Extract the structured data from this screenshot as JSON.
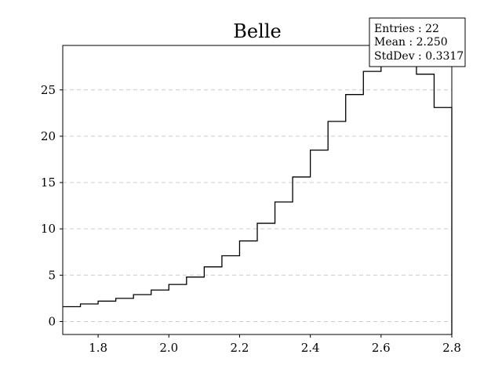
{
  "chart_data": {
    "type": "histogram",
    "title": "Belle",
    "xlabel": "",
    "ylabel": "",
    "xlim": [
      1.7,
      2.8
    ],
    "ylim": [
      -1.4,
      29.8
    ],
    "x_ticks": [
      1.8,
      2.0,
      2.2,
      2.4,
      2.6,
      2.8
    ],
    "x_tick_labels": [
      "1.8",
      "2.0",
      "2.2",
      "2.4",
      "2.6",
      "2.8"
    ],
    "y_ticks": [
      0,
      5,
      10,
      15,
      20,
      25
    ],
    "y_tick_labels": [
      "0",
      "5",
      "10",
      "15",
      "20",
      "25"
    ],
    "grid": "y-dashed",
    "bin_edges": [
      1.7,
      1.75,
      1.8,
      1.85,
      1.9,
      1.95,
      2.0,
      2.05,
      2.1,
      2.15,
      2.2,
      2.25,
      2.3,
      2.35,
      2.4,
      2.45,
      2.5,
      2.55,
      2.6,
      2.65,
      2.7,
      2.75,
      2.8
    ],
    "values": [
      1.6,
      1.9,
      2.2,
      2.5,
      2.9,
      3.4,
      4.0,
      4.8,
      5.9,
      7.1,
      8.7,
      10.6,
      12.9,
      15.6,
      18.5,
      21.6,
      24.5,
      27.0,
      28.6,
      29.3,
      26.7,
      23.1
    ],
    "stats_box": {
      "placement": "top-right",
      "entries_label": "Entries : 22",
      "mean_label": "Mean : 2.250",
      "stddev_label": "StdDev : 0.3317"
    }
  }
}
